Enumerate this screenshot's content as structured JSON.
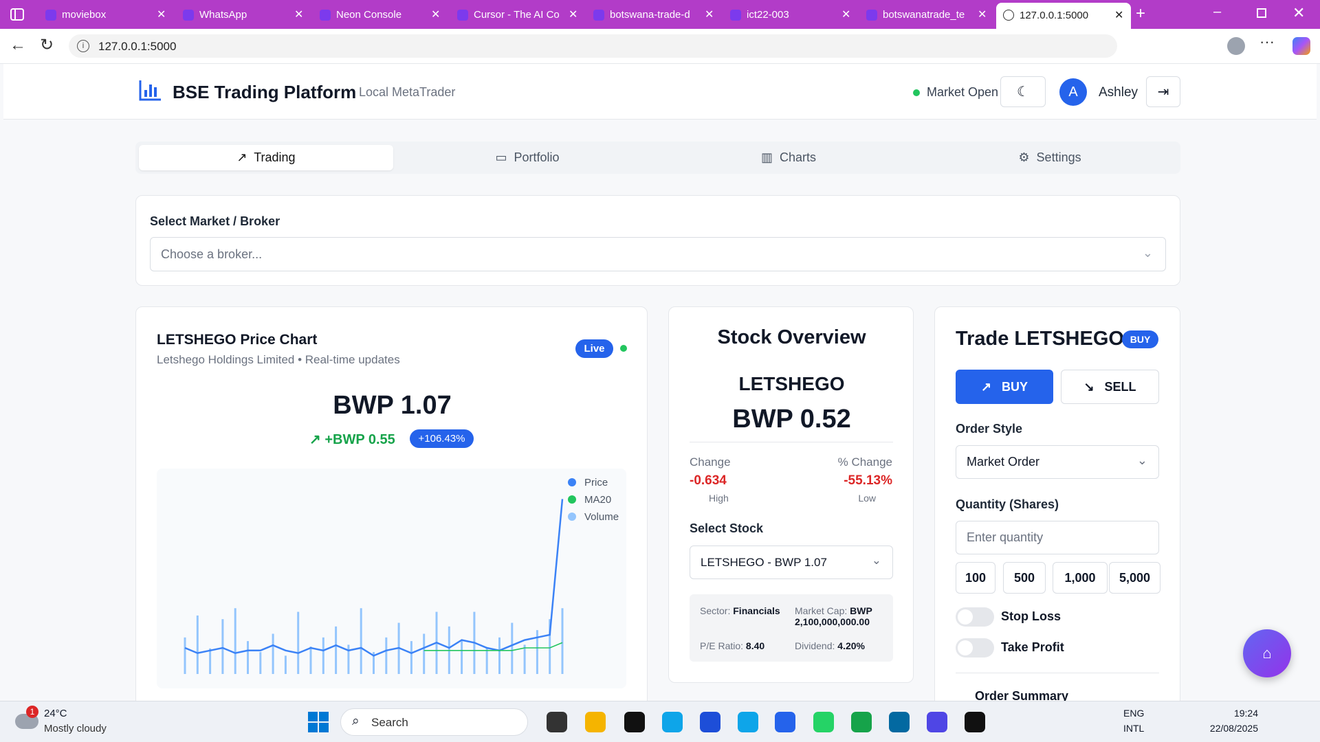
{
  "browser": {
    "tabs": [
      "moviebox",
      "WhatsApp",
      "Neon Console",
      "Cursor - The AI Co",
      "botswana-trade-d",
      "ict22-003",
      "botswanatrade_te",
      "127.0.0.1:5000"
    ],
    "url": "127.0.0.1:5000"
  },
  "header": {
    "title": "BSE Trading Platform",
    "subtitle": "Local MetaTrader",
    "status": "Market Open",
    "avatar": "A",
    "user": "Ashley"
  },
  "nav": [
    "Trading",
    "Portfolio",
    "Charts",
    "Settings"
  ],
  "broker": {
    "label": "Select Market / Broker",
    "placeholder": "Choose a broker..."
  },
  "price_chart": {
    "title": "LETSHEGO Price Chart",
    "subtitle": "Letshego Holdings Limited • Real-time updates",
    "badge": "Live",
    "price": "BWP 1.07",
    "change": "+BWP 0.55",
    "change_pct": "+106.43%",
    "chart_data": {
      "type": "line",
      "ylim": [
        0.4,
        1.1
      ],
      "y2lim": [
        0,
        100
      ],
      "series": [
        {
          "name": "Price",
          "color": "#3b82f6",
          "values": [
            0.5,
            0.48,
            0.49,
            0.5,
            0.48,
            0.49,
            0.49,
            0.51,
            0.49,
            0.48,
            0.5,
            0.49,
            0.51,
            0.49,
            0.5,
            0.47,
            0.49,
            0.5,
            0.48,
            0.5,
            0.52,
            0.5,
            0.53,
            0.52,
            0.5,
            0.49,
            0.51,
            0.53,
            0.54,
            0.55,
            1.07
          ]
        },
        {
          "name": "MA20",
          "color": "#22c55e",
          "values": [
            null,
            null,
            null,
            null,
            null,
            null,
            null,
            null,
            null,
            null,
            null,
            null,
            null,
            null,
            null,
            null,
            null,
            null,
            null,
            0.49,
            0.49,
            0.49,
            0.49,
            0.49,
            0.49,
            0.49,
            0.49,
            0.5,
            0.5,
            0.5,
            0.52
          ]
        },
        {
          "name": "Volume",
          "color": "#93c5fd",
          "axis": "y2",
          "values": [
            20,
            32,
            14,
            30,
            36,
            18,
            12,
            22,
            10,
            34,
            15,
            20,
            26,
            16,
            36,
            12,
            20,
            28,
            18,
            22,
            34,
            26,
            18,
            34,
            14,
            20,
            28,
            16,
            24,
            30,
            36
          ]
        }
      ]
    }
  },
  "overview": {
    "title": "Stock Overview",
    "symbol": "LETSHEGO",
    "price": "BWP 0.52",
    "change_label": "Change",
    "change": "-0.634",
    "high": "High",
    "pct_label": "% Change",
    "pct": "-55.13%",
    "low": "Low",
    "select_label": "Select Stock",
    "select_value": "LETSHEGO - BWP 1.07",
    "info": {
      "sector_label": "Sector:",
      "sector": "Financials",
      "cap_label": "Market Cap:",
      "cap": "BWP 2,100,000,000.00",
      "pe_label": "P/E Ratio:",
      "pe": "8.40",
      "div_label": "Dividend:",
      "div": "4.20%"
    }
  },
  "trade": {
    "title": "Trade LETSHEGO",
    "badge": "BUY",
    "buy": "BUY",
    "sell": "SELL",
    "order_style_label": "Order Style",
    "order_style": "Market Order",
    "quantity_label": "Quantity (Shares)",
    "quantity_placeholder": "Enter quantity",
    "quick": [
      "100",
      "500",
      "1,000",
      "5,000"
    ],
    "stop_loss": "Stop Loss",
    "take_profit": "Take Profit",
    "summary": "Order Summary"
  },
  "taskbar": {
    "temp": "24°C",
    "weather": "Mostly cloudy",
    "badge": "1",
    "search": "Search",
    "lang": "ENG",
    "layout": "INTL",
    "time": "19:24",
    "date": "22/08/2025"
  }
}
